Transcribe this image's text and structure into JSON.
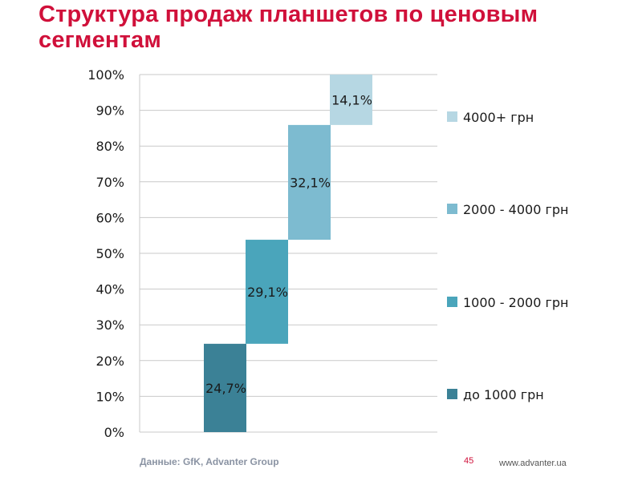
{
  "header": {
    "title": "Структура продаж планшетов по ценовым сегментам"
  },
  "footer": {
    "source": "Данные: GfK, Advanter Group",
    "page_number": "45",
    "site": "www.advanter.ua"
  },
  "chart_data": {
    "type": "bar",
    "subtype": "waterfall-stacked",
    "title": "",
    "xlabel": "",
    "ylabel": "",
    "ylim": [
      0,
      100
    ],
    "y_ticks": [
      "0%",
      "10%",
      "20%",
      "30%",
      "40%",
      "50%",
      "60%",
      "70%",
      "80%",
      "90%",
      "100%"
    ],
    "grid": true,
    "legend_position": "right",
    "series": [
      {
        "name": "до 1000 грн",
        "value": 24.7,
        "label": "24,7%",
        "start": 0,
        "color": "#3b8196"
      },
      {
        "name": "1000 - 2000 грн",
        "value": 29.1,
        "label": "29,1%",
        "start": 24.7,
        "color": "#4aa5bb"
      },
      {
        "name": "2000 - 4000 грн",
        "value": 32.1,
        "label": "32,1%",
        "start": 53.8,
        "color": "#7dbbd0"
      },
      {
        "name": "4000+ грн",
        "value": 14.1,
        "label": "14,1%",
        "start": 85.9,
        "color": "#b6d7e3"
      }
    ]
  }
}
